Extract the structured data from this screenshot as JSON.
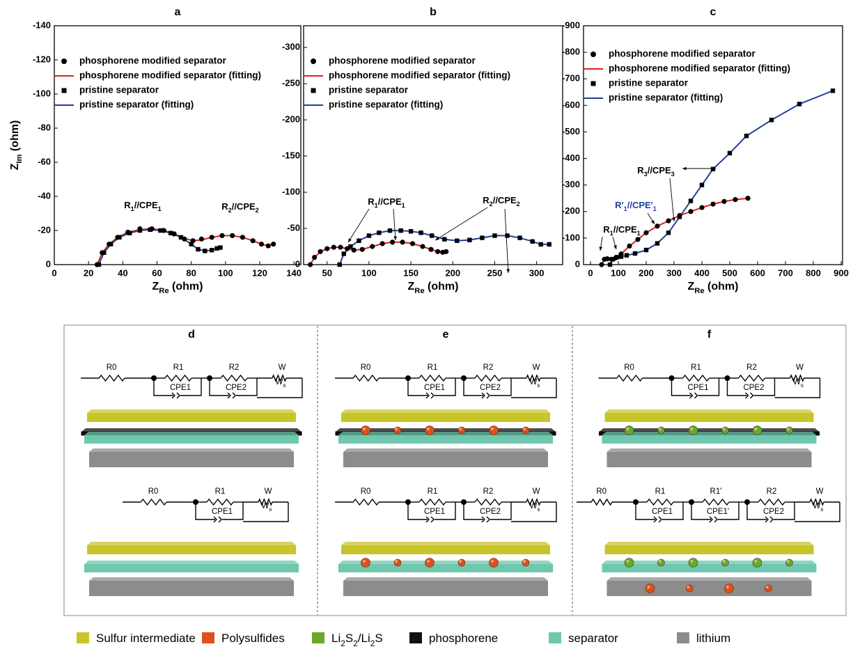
{
  "chart_data": [
    {
      "type": "line",
      "title": "a",
      "xlabel": [
        "Z",
        "Re",
        " (ohm)"
      ],
      "ylabel": [
        "Z",
        "Im",
        " (ohm)"
      ],
      "xlim": [
        0,
        144
      ],
      "ylim": [
        0,
        -140
      ],
      "xticks": [
        0,
        20,
        40,
        60,
        80,
        100,
        120,
        140
      ],
      "yticks": [
        0,
        -20,
        -40,
        -60,
        -80,
        -100,
        -120,
        -140
      ],
      "series": [
        {
          "name": "phosphorene modified separator",
          "marker": "circle",
          "color": "#000000",
          "x": [
            25,
            28,
            32,
            37,
            43,
            50,
            57,
            64,
            70,
            76,
            81,
            86,
            92,
            98,
            104,
            110,
            116,
            121,
            125,
            128
          ],
          "values": [
            0,
            -7,
            -12,
            -16,
            -19,
            -21,
            -21,
            -20,
            -18,
            -15,
            -14,
            -15,
            -16,
            -17,
            -17,
            -16,
            -14,
            -12,
            -11,
            -12
          ]
        },
        {
          "name": "phosphorene modified separator (fitting)",
          "marker": "none",
          "color": "#e0201b",
          "x": [
            25,
            28,
            32,
            37,
            43,
            50,
            57,
            64,
            70,
            76,
            81,
            86,
            92,
            98,
            104,
            110,
            116,
            121,
            125,
            128
          ],
          "values": [
            0,
            -7,
            -12,
            -16,
            -19,
            -20.5,
            -21,
            -20,
            -18,
            -15.5,
            -14,
            -14.5,
            -16,
            -17,
            -17,
            -16,
            -14,
            -12,
            -11,
            -12
          ]
        },
        {
          "name": "pristine separator",
          "marker": "square",
          "color": "#000000",
          "x": [
            26,
            29,
            33,
            38,
            44,
            50,
            56,
            62,
            68,
            74,
            80,
            84,
            88,
            92,
            95,
            97
          ],
          "values": [
            0,
            -7,
            -12,
            -16,
            -18.5,
            -20,
            -20.5,
            -20,
            -18.5,
            -16,
            -12,
            -9,
            -8,
            -8.5,
            -9.5,
            -10
          ]
        },
        {
          "name": "pristine separator  (fitting)",
          "marker": "none",
          "color": "#1f3f99",
          "x": [
            26,
            29,
            33,
            38,
            44,
            50,
            56,
            62,
            68,
            74,
            80,
            84,
            88,
            92,
            95,
            97
          ],
          "values": [
            0,
            -7,
            -12,
            -16,
            -18.5,
            -20,
            -20.5,
            -20,
            -18.5,
            -16,
            -12,
            -9,
            -8,
            -8.5,
            -9.5,
            -10
          ]
        }
      ],
      "annotations": [
        {
          "text": [
            "R",
            "1",
            "//CPE",
            "1"
          ],
          "color": "#000000"
        },
        {
          "text": [
            "R",
            "2",
            "//CPE",
            "2"
          ],
          "color": "#000000"
        }
      ]
    },
    {
      "type": "line",
      "title": "b",
      "xlabel": [
        "Z",
        "Re",
        " (ohm)"
      ],
      "xlim": [
        22,
        331
      ],
      "ylim": [
        0,
        -330
      ],
      "xticks": [
        50,
        100,
        150,
        200,
        250,
        300
      ],
      "yticks": [
        0,
        -50,
        -100,
        -150,
        -200,
        -250,
        -300
      ],
      "series": [
        {
          "name": "phosphorene modified separator",
          "marker": "circle",
          "color": "#000000",
          "x": [
            30,
            35,
            42,
            50,
            58,
            66,
            74,
            82,
            92,
            104,
            116,
            128,
            140,
            152,
            164,
            174,
            182,
            188,
            192
          ],
          "values": [
            0,
            -10,
            -18,
            -22,
            -24,
            -24,
            -22,
            -20,
            -21,
            -25,
            -29,
            -31,
            -31,
            -29,
            -25,
            -21,
            -18,
            -17,
            -18
          ]
        },
        {
          "name": "phosphorene modified separator (fitting)",
          "marker": "none",
          "color": "#e0201b",
          "x": [
            30,
            35,
            42,
            50,
            58,
            66,
            74,
            82,
            92,
            104,
            116,
            128,
            140,
            152,
            164,
            174,
            182,
            188,
            192
          ],
          "values": [
            0,
            -10,
            -18,
            -22,
            -24,
            -24,
            -22,
            -20,
            -21,
            -25,
            -29,
            -31,
            -31,
            -29,
            -25,
            -21,
            -18,
            -17,
            -18
          ]
        },
        {
          "name": "pristine separator",
          "marker": "square",
          "color": "#000000",
          "x": [
            65,
            70,
            78,
            88,
            100,
            112,
            125,
            138,
            150,
            162,
            175,
            190,
            205,
            220,
            235,
            250,
            265,
            280,
            295,
            305,
            315
          ],
          "values": [
            0,
            -15,
            -25,
            -33,
            -40,
            -44,
            -47,
            -47,
            -46,
            -44,
            -40,
            -35,
            -33,
            -34,
            -37,
            -40,
            -40,
            -37,
            -32,
            -28,
            -28
          ]
        },
        {
          "name": "pristine separator  (fitting)",
          "marker": "none",
          "color": "#1f3f99",
          "x": [
            65,
            70,
            78,
            88,
            100,
            112,
            125,
            138,
            150,
            162,
            175,
            190,
            205,
            220,
            235,
            250,
            265,
            280,
            295,
            305,
            315
          ],
          "values": [
            0,
            -15,
            -25,
            -33,
            -40,
            -44,
            -47,
            -47,
            -46,
            -44,
            -40,
            -35,
            -33,
            -34,
            -37,
            -40,
            -40,
            -37,
            -32,
            -28,
            -28
          ]
        }
      ],
      "annotations": [
        {
          "text": [
            "R",
            "1",
            "//CPE",
            "1"
          ],
          "color": "#000000"
        },
        {
          "text": [
            "R",
            "2",
            "//CPE",
            "2"
          ],
          "color": "#000000"
        }
      ]
    },
    {
      "type": "line",
      "title": "c",
      "xlabel": [
        "Z",
        "Re",
        " (ohm)"
      ],
      "xlim": [
        -25,
        905
      ],
      "ylim": [
        0,
        -900
      ],
      "xticks": [
        0,
        100,
        200,
        300,
        400,
        500,
        600,
        700,
        800,
        900
      ],
      "yticks": [
        0,
        -100,
        -200,
        -300,
        -400,
        -500,
        -600,
        -700,
        -800,
        -900
      ],
      "series": [
        {
          "name": "phosphorene modified separator",
          "marker": "circle",
          "color": "#000000",
          "x": [
            40,
            50,
            60,
            75,
            90,
            110,
            140,
            170,
            200,
            240,
            280,
            320,
            360,
            400,
            440,
            480,
            520,
            565
          ],
          "values": [
            0,
            -20,
            -22,
            -20,
            -25,
            -40,
            -70,
            -95,
            -120,
            -145,
            -165,
            -185,
            -200,
            -215,
            -228,
            -238,
            -245,
            -250
          ]
        },
        {
          "name": "phosphorene modified separator (fitting)",
          "marker": "none",
          "color": "#e0201b",
          "x": [
            40,
            50,
            60,
            75,
            90,
            110,
            140,
            170,
            200,
            240,
            280,
            320,
            360,
            400,
            440,
            480,
            520,
            565
          ],
          "values": [
            0,
            -20,
            -22,
            -20,
            -25,
            -40,
            -70,
            -95,
            -120,
            -145,
            -165,
            -185,
            -200,
            -215,
            -228,
            -238,
            -245,
            -250
          ]
        },
        {
          "name": "pristine separator",
          "marker": "square",
          "color": "#000000",
          "x": [
            70,
            80,
            95,
            110,
            130,
            160,
            200,
            240,
            280,
            320,
            360,
            400,
            440,
            500,
            560,
            650,
            750,
            870
          ],
          "values": [
            0,
            -20,
            -28,
            -30,
            -35,
            -42,
            -55,
            -80,
            -120,
            -180,
            -240,
            -300,
            -360,
            -420,
            -485,
            -545,
            -605,
            -655
          ]
        },
        {
          "name": "pristine separator  (fitting)",
          "marker": "none",
          "color": "#1f3f99",
          "x": [
            70,
            80,
            95,
            110,
            130,
            160,
            200,
            240,
            280,
            320,
            360,
            400,
            440,
            500,
            560,
            650,
            750,
            870
          ],
          "values": [
            0,
            -20,
            -28,
            -30,
            -35,
            -42,
            -55,
            -80,
            -120,
            -180,
            -240,
            -300,
            -360,
            -420,
            -485,
            -545,
            -605,
            -655
          ]
        }
      ],
      "annotations": [
        {
          "text": [
            "R",
            "3",
            "//CPE",
            "3"
          ],
          "color": "#000000"
        },
        {
          "text": [
            "R'",
            "1",
            "//CPE'",
            "1"
          ],
          "color": "#1f3fa0"
        },
        {
          "text": [
            "R",
            "1",
            "//CPE",
            "1"
          ],
          "color": "#000000"
        }
      ]
    }
  ],
  "diagram": {
    "panels": [
      {
        "label": "d",
        "circuits": [
          {
            "lead": "R0",
            "branches": [
              {
                "r": "R1",
                "cpe": "CPE1"
              },
              {
                "r": "R2",
                "cpe": "CPE2"
              }
            ],
            "w": "W",
            "ws": [
              "W",
              "s"
            ]
          },
          {
            "lead": "R0",
            "branches": [
              {
                "r": "R1",
                "cpe": "CPE1"
              }
            ],
            "w": "W",
            "ws": [
              "W",
              "s"
            ]
          }
        ]
      },
      {
        "label": "e",
        "circuits": [
          {
            "lead": "R0",
            "branches": [
              {
                "r": "R1",
                "cpe": "CPE1"
              },
              {
                "r": "R2",
                "cpe": "CPE2"
              }
            ],
            "w": "W",
            "ws": [
              "W",
              "s"
            ]
          },
          {
            "lead": "R0",
            "branches": [
              {
                "r": "R1",
                "cpe": "CPE1"
              },
              {
                "r": "R2",
                "cpe": "CPE2"
              }
            ],
            "w": "W",
            "ws": [
              "W",
              "s"
            ]
          }
        ]
      },
      {
        "label": "f",
        "circuits": [
          {
            "lead": "R0",
            "branches": [
              {
                "r": "R1",
                "cpe": "CPE1"
              },
              {
                "r": "R2",
                "cpe": "CPE2"
              }
            ],
            "w": "W",
            "ws": [
              "W",
              "s"
            ]
          },
          {
            "lead": "R0",
            "branches": [
              {
                "r": "R1",
                "cpe": "CPE1"
              },
              {
                "r": "R1'",
                "cpe": "CPE1'"
              },
              {
                "r": "R2",
                "cpe": "CPE2"
              }
            ],
            "w": "W",
            "ws": [
              "W",
              "s"
            ]
          }
        ]
      }
    ],
    "legend": [
      {
        "text": [
          "Sulfur intermediate"
        ],
        "color": "#c8c52c"
      },
      {
        "text": [
          "Polysulfides"
        ],
        "color": "#e0501a"
      },
      {
        "text": [
          "Li",
          "2",
          "S",
          "2",
          "/Li",
          "2",
          "S"
        ],
        "color": "#6aa72a"
      },
      {
        "text": [
          "phosphorene"
        ],
        "color": "#111111"
      },
      {
        "text": [
          "separator"
        ],
        "color": "#6fc7ae"
      },
      {
        "text": [
          "lithium"
        ],
        "color": "#8c8c8c"
      }
    ]
  }
}
